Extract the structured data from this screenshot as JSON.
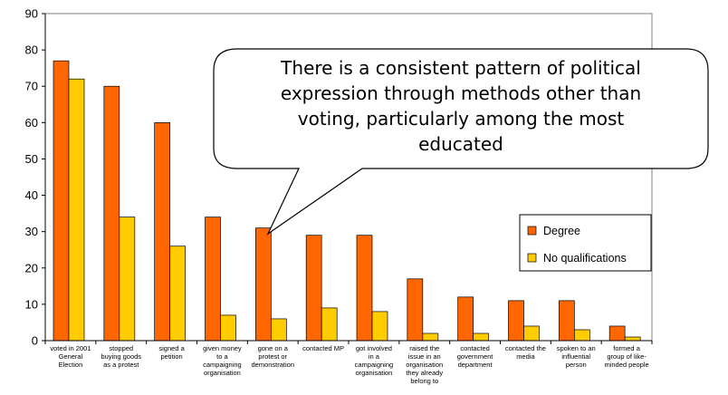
{
  "chart_data": {
    "type": "bar",
    "categories": [
      [
        "voted in 2001",
        "General",
        "Election"
      ],
      [
        "stopped",
        "buying goods",
        "as a protest"
      ],
      [
        "signed a",
        "petition"
      ],
      [
        "given money",
        "to a",
        "campaigning",
        "organisation"
      ],
      [
        "gone on a",
        "protest or",
        "demonstration"
      ],
      [
        "contacted MP"
      ],
      [
        "got involved",
        "in a",
        "campaigning",
        "organisation"
      ],
      [
        "raised the",
        "issue in an",
        "organisation",
        "they already",
        "belong to"
      ],
      [
        "contacted",
        "government",
        "department"
      ],
      [
        "contacted the",
        "media"
      ],
      [
        "spoken to an",
        "influential",
        "person"
      ],
      [
        "formed a",
        "group of like-",
        "minded people"
      ]
    ],
    "series": [
      {
        "name": "Degree",
        "color": "#ff6600",
        "values": [
          77,
          70,
          60,
          34,
          31,
          29,
          29,
          17,
          12,
          11,
          11,
          4
        ]
      },
      {
        "name": "No qualifications",
        "color": "#ffcc00",
        "values": [
          72,
          34,
          26,
          7,
          6,
          9,
          8,
          2,
          2,
          4,
          3,
          1
        ]
      }
    ],
    "ylim": [
      0,
      90
    ],
    "yticks": [
      "0",
      "10",
      "20",
      "30",
      "40",
      "50",
      "60",
      "70",
      "80",
      "90"
    ],
    "grid": false,
    "legend_position": "right",
    "annotation": {
      "lines": [
        "There is  a consistent pattern of political",
        "expression through methods other than",
        "voting, particularly among the most",
        "educated"
      ],
      "points_to_category": 4
    }
  }
}
